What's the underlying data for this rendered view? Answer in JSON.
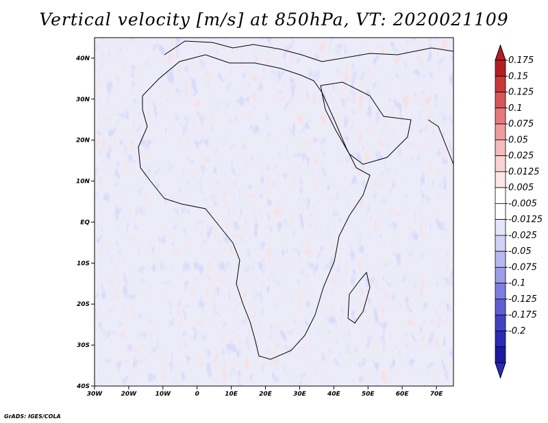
{
  "title": "Vertical velocity [m/s] at 850hPa, VT: 2020021109",
  "credit": "GrADS: IGES/COLA",
  "map": {
    "lon_ticks": [
      "30W",
      "20W",
      "10W",
      "0",
      "10E",
      "20E",
      "30E",
      "40E",
      "50E",
      "60E",
      "70E"
    ],
    "lat_ticks": [
      "40N",
      "30N",
      "20N",
      "10N",
      "EQ",
      "10S",
      "20S",
      "30S",
      "40S"
    ],
    "lon_range": [
      -30,
      75
    ],
    "lat_range": [
      -40,
      45
    ]
  },
  "colorbar": {
    "labels": [
      "0.175",
      "0.15",
      "0.125",
      "0.1",
      "0.075",
      "0.05",
      "0.025",
      "0.0125",
      "0.005",
      "-0.005",
      "-0.0125",
      "-0.025",
      "-0.05",
      "-0.075",
      "-0.1",
      "-0.125",
      "-0.175",
      "-0.2"
    ],
    "colors": [
      "#b31e24",
      "#c8373a",
      "#d8555a",
      "#e5797b",
      "#ee9c9d",
      "#f5bbbb",
      "#f9d3d3",
      "#fce6e6",
      "#ffffff",
      "#ffffff",
      "#e6e6fb",
      "#d2d2f7",
      "#b8b8f1",
      "#9d9de9",
      "#7e7ee0",
      "#5f5fd4",
      "#4040c5",
      "#2a2ab5",
      "#1a1aa0"
    ],
    "top_arrow_color": "#b31e24",
    "bottom_arrow_color": "#2a2ab5"
  }
}
